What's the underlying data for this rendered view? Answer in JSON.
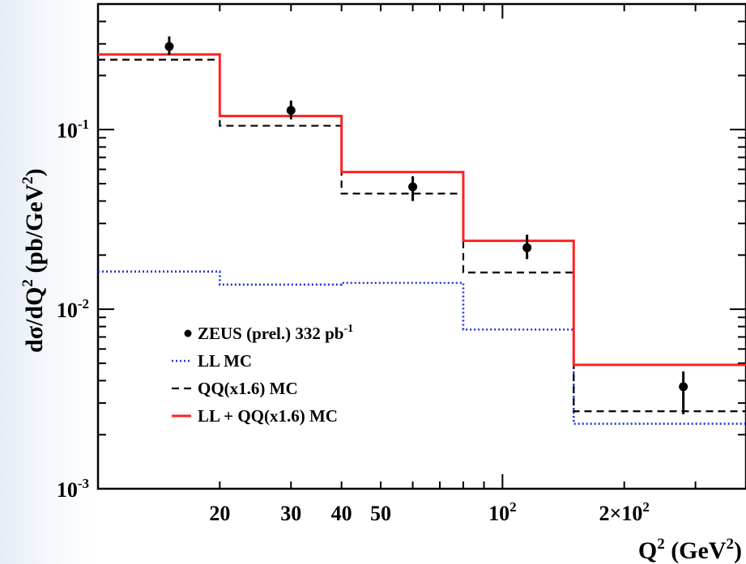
{
  "chart_data": {
    "type": "step",
    "ylabel": {
      "main": "dσ/dQ",
      "sup2": "2",
      "unit": " (pb/GeV",
      "sup2b": "2",
      "close": ")"
    },
    "xlabel": {
      "main": "Q",
      "sup": "2",
      "unit": " (GeV",
      "sup2": "2",
      "close": ")"
    },
    "xscale": "log",
    "yscale": "log",
    "xlim": [
      10,
      400
    ],
    "ylim": [
      0.001,
      0.5
    ],
    "bin_edges": [
      10,
      20,
      40,
      80,
      150,
      400
    ],
    "x_tick_labels": [
      {
        "x": 20,
        "text": "20",
        "sup": ""
      },
      {
        "x": 30,
        "text": "30",
        "sup": ""
      },
      {
        "x": 40,
        "text": "40",
        "sup": ""
      },
      {
        "x": 50,
        "text": "50",
        "sup": ""
      },
      {
        "x": 100,
        "text": "10",
        "sup": "2"
      },
      {
        "x": 200,
        "text": "2×10",
        "sup": "2"
      }
    ],
    "y_tick_labels": [
      {
        "y": 0.1,
        "text": "10",
        "sup": "-1"
      },
      {
        "y": 0.01,
        "text": "10",
        "sup": "-2"
      },
      {
        "y": 0.001,
        "text": "10",
        "sup": "-3"
      }
    ],
    "data_points": {
      "name": "ZEUS (prel.) 332 pb",
      "name_sup": "-1",
      "color": "#000000",
      "points": [
        {
          "x": 15,
          "y": 0.29,
          "ylo": 0.26,
          "yhi": 0.33
        },
        {
          "x": 30,
          "y": 0.128,
          "ylo": 0.114,
          "yhi": 0.145
        },
        {
          "x": 60,
          "y": 0.048,
          "ylo": 0.04,
          "yhi": 0.055
        },
        {
          "x": 115,
          "y": 0.022,
          "ylo": 0.019,
          "yhi": 0.026
        },
        {
          "x": 280,
          "y": 0.0037,
          "ylo": 0.0026,
          "yhi": 0.0045
        }
      ]
    },
    "series": [
      {
        "name": "LL MC",
        "style": "dotted",
        "color": "#2233dd",
        "values": [
          0.0162,
          0.0137,
          0.014,
          0.0077,
          0.0023
        ]
      },
      {
        "name": "QQ(x1.6) MC",
        "style": "dashed",
        "color": "#000000",
        "values": [
          0.245,
          0.105,
          0.044,
          0.016,
          0.0027
        ]
      },
      {
        "name": "LL + QQ(x1.6) MC",
        "style": "solid",
        "color": "#ff2222",
        "values": [
          0.262,
          0.119,
          0.058,
          0.024,
          0.0049
        ]
      }
    ],
    "legend_position": "lower-left"
  }
}
